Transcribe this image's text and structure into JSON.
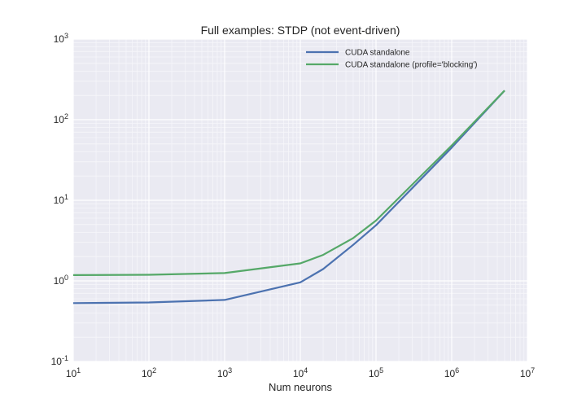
{
  "chart_data": {
    "type": "line",
    "title": "Full examples: STDP (not event-driven)",
    "xlabel": "Num neurons",
    "ylabel": "",
    "x_scale": "log",
    "y_scale": "log",
    "xlim": [
      10,
      10000000
    ],
    "ylim": [
      0.1,
      1000
    ],
    "x_tick_labels": [
      {
        "base": "10",
        "exp": "1"
      },
      {
        "base": "10",
        "exp": "2"
      },
      {
        "base": "10",
        "exp": "3"
      },
      {
        "base": "10",
        "exp": "4"
      },
      {
        "base": "10",
        "exp": "5"
      },
      {
        "base": "10",
        "exp": "6"
      },
      {
        "base": "10",
        "exp": "7"
      }
    ],
    "y_tick_labels": [
      {
        "base": "10",
        "exp": "-1"
      },
      {
        "base": "10",
        "exp": "0"
      },
      {
        "base": "10",
        "exp": "1"
      },
      {
        "base": "10",
        "exp": "2"
      },
      {
        "base": "10",
        "exp": "3"
      }
    ],
    "grid": true,
    "legend_position": "top-right",
    "series": [
      {
        "name": "CUDA standalone",
        "color": "#4c72b0",
        "x": [
          10,
          100,
          1000,
          10000,
          20000,
          50000,
          100000,
          1000000,
          5000000
        ],
        "y": [
          0.53,
          0.54,
          0.58,
          0.96,
          1.4,
          2.8,
          4.9,
          45,
          230
        ]
      },
      {
        "name": "CUDA standalone (profile='blocking')",
        "color": "#55a868",
        "x": [
          10,
          100,
          1000,
          10000,
          20000,
          50000,
          100000,
          1000000,
          5000000
        ],
        "y": [
          1.18,
          1.19,
          1.25,
          1.65,
          2.1,
          3.4,
          5.6,
          48,
          230
        ]
      }
    ]
  },
  "style": {
    "plot_background": "#eaeaf2",
    "major_grid_color": "#ffffff",
    "minor_grid_color": "#f6f6fa",
    "text_color": "#262626"
  }
}
